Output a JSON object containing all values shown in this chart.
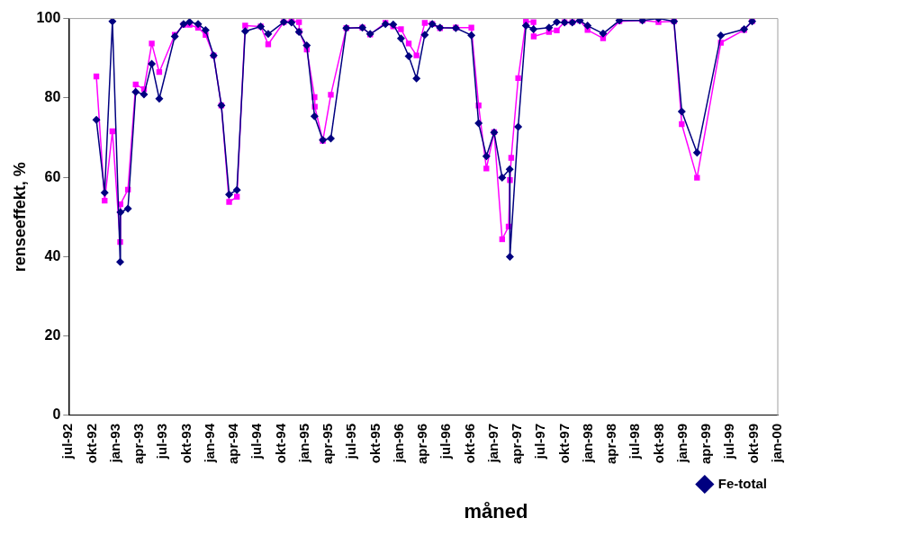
{
  "chart_data": {
    "type": "line",
    "xlabel": "måned",
    "ylabel": "renseeffekt, %",
    "xlim": [
      "1992-07-01",
      "2000-01-01"
    ],
    "xticks": [
      {
        "value": "1992-07-01",
        "label": "jul-92"
      },
      {
        "value": "1992-10-01",
        "label": "okt-92"
      },
      {
        "value": "1993-01-01",
        "label": "jan-93"
      },
      {
        "value": "1993-04-01",
        "label": "apr-93"
      },
      {
        "value": "1993-07-01",
        "label": "jul-93"
      },
      {
        "value": "1993-10-01",
        "label": "okt-93"
      },
      {
        "value": "1994-01-01",
        "label": "jan-94"
      },
      {
        "value": "1994-04-01",
        "label": "apr-94"
      },
      {
        "value": "1994-07-01",
        "label": "jul-94"
      },
      {
        "value": "1994-10-01",
        "label": "okt-94"
      },
      {
        "value": "1995-01-01",
        "label": "jan-95"
      },
      {
        "value": "1995-04-01",
        "label": "apr-95"
      },
      {
        "value": "1995-07-01",
        "label": "jul-95"
      },
      {
        "value": "1995-10-01",
        "label": "okt-95"
      },
      {
        "value": "1996-01-01",
        "label": "jan-96"
      },
      {
        "value": "1996-04-01",
        "label": "apr-96"
      },
      {
        "value": "1996-07-01",
        "label": "jul-96"
      },
      {
        "value": "1996-10-01",
        "label": "okt-96"
      },
      {
        "value": "1997-01-01",
        "label": "jan-97"
      },
      {
        "value": "1997-04-01",
        "label": "apr-97"
      },
      {
        "value": "1997-07-01",
        "label": "jul-97"
      },
      {
        "value": "1997-10-01",
        "label": "okt-97"
      },
      {
        "value": "1998-01-01",
        "label": "jan-98"
      },
      {
        "value": "1998-04-01",
        "label": "apr-98"
      },
      {
        "value": "1998-07-01",
        "label": "jul-98"
      },
      {
        "value": "1998-10-01",
        "label": "okt-98"
      },
      {
        "value": "1999-01-01",
        "label": "jan-99"
      },
      {
        "value": "1999-04-01",
        "label": "apr-99"
      },
      {
        "value": "1999-07-01",
        "label": "jul-99"
      },
      {
        "value": "1999-10-01",
        "label": "okt-99"
      },
      {
        "value": "2000-01-01",
        "label": "jan-00"
      }
    ],
    "ylim": [
      0,
      100
    ],
    "yticks": [
      0,
      20,
      40,
      60,
      80,
      100
    ],
    "grid": false,
    "legend": "bottom right",
    "series": [
      {
        "name": "Fe-total",
        "color": "#000080",
        "marker": "diamond",
        "x": [
          "1992-10-16",
          "1992-11-17",
          "1992-12-17",
          "1993-01-16",
          "1993-01-17",
          "1993-02-15",
          "1993-03-17",
          "1993-04-18",
          "1993-05-18",
          "1993-06-16",
          "1993-08-15",
          "1993-09-18",
          "1993-10-11",
          "1993-11-13",
          "1993-12-12",
          "1994-01-12",
          "1994-02-11",
          "1994-03-13",
          "1994-04-12",
          "1994-05-14",
          "1994-07-13",
          "1994-08-11",
          "1994-10-10",
          "1994-11-09",
          "1994-12-08",
          "1995-01-07",
          "1995-02-06",
          "1995-03-10",
          "1995-04-10",
          "1995-06-09",
          "1995-08-10",
          "1995-09-09",
          "1995-11-07",
          "1995-12-07",
          "1996-01-06",
          "1996-02-05",
          "1996-03-06",
          "1996-04-07",
          "1996-05-06",
          "1996-06-05",
          "1996-08-05",
          "1996-10-04",
          "1996-11-01",
          "1996-12-01",
          "1996-12-31",
          "1997-01-31",
          "1997-03-01",
          "1997-03-02",
          "1997-04-03",
          "1997-05-03",
          "1997-06-01",
          "1997-07-31",
          "1997-08-30",
          "1997-09-29",
          "1997-10-29",
          "1997-11-27",
          "1997-12-27",
          "1998-02-25",
          "1998-04-29",
          "1998-07-27",
          "1998-09-27",
          "1998-11-26",
          "1998-12-26",
          "1999-02-23",
          "1999-05-26",
          "1999-08-24",
          "1999-09-24"
        ],
        "values": [
          74.5,
          56.1,
          99.3,
          38.7,
          51.2,
          52.1,
          81.5,
          80.9,
          88.6,
          79.8,
          95.5,
          98.6,
          99.1,
          98.6,
          97.1,
          90.7,
          78.1,
          55.7,
          56.8,
          96.8,
          98.0,
          96.1,
          99.1,
          99.0,
          96.6,
          93.2,
          75.4,
          69.4,
          69.8,
          97.6,
          97.7,
          96.1,
          98.6,
          98.5,
          95.0,
          90.5,
          84.9,
          95.9,
          98.6,
          97.7,
          97.6,
          95.8,
          73.6,
          65.3,
          71.3,
          59.9,
          62.0,
          40.0,
          72.7,
          98.2,
          97.3,
          97.7,
          99.1,
          99.0,
          99.0,
          99.5,
          98.2,
          96.2,
          99.5,
          99.5,
          100,
          99.3,
          76.6,
          66.2,
          95.7,
          97.3,
          99.3
        ]
      },
      {
        "color": "#ff00ff",
        "marker": "square",
        "x": [
          "1992-10-16",
          "1992-11-17",
          "1992-12-17",
          "1993-01-16",
          "1993-01-17",
          "1993-02-15",
          "1993-03-17",
          "1993-04-18",
          "1993-05-18",
          "1993-06-16",
          "1993-08-15",
          "1993-09-18",
          "1993-10-11",
          "1993-11-13",
          "1993-12-12",
          "1994-01-12",
          "1994-02-11",
          "1994-03-13",
          "1994-04-12",
          "1994-05-14",
          "1994-07-13",
          "1994-08-11",
          "1994-10-10",
          "1994-11-09",
          "1994-12-08",
          "1994-12-09",
          "1995-01-07",
          "1995-02-06",
          "1995-02-07",
          "1995-03-10",
          "1995-04-10",
          "1995-06-09",
          "1995-08-10",
          "1995-09-09",
          "1995-11-07",
          "1995-12-07",
          "1996-01-06",
          "1996-02-05",
          "1996-03-06",
          "1996-04-07",
          "1996-05-06",
          "1996-06-05",
          "1996-08-05",
          "1996-10-04",
          "1996-11-01",
          "1996-12-01",
          "1996-12-31",
          "1997-01-31",
          "1997-02-25",
          "1997-03-02",
          "1997-03-07",
          "1997-04-03",
          "1997-05-03",
          "1997-06-01",
          "1997-06-02",
          "1997-07-31",
          "1997-08-30",
          "1997-09-29",
          "1997-10-29",
          "1997-11-27",
          "1997-12-27",
          "1998-02-25",
          "1998-04-29",
          "1998-07-27",
          "1998-09-27",
          "1998-11-26",
          "1998-12-26",
          "1999-02-23",
          "1999-05-26",
          "1999-08-24",
          "1999-09-24"
        ],
        "values": [
          85.4,
          54.1,
          71.6,
          43.7,
          53.2,
          56.9,
          83.4,
          82.2,
          93.7,
          86.5,
          95.9,
          98.4,
          98.4,
          97.7,
          95.9,
          90.7,
          78.1,
          53.8,
          55.1,
          98.2,
          98.0,
          93.5,
          99.1,
          99.5,
          99.1,
          96.8,
          92.2,
          80.2,
          77.8,
          69.2,
          80.8,
          97.6,
          97.7,
          96.0,
          98.9,
          98.0,
          97.3,
          93.7,
          90.7,
          98.9,
          98.6,
          97.6,
          97.7,
          97.7,
          78.1,
          62.2,
          71.4,
          44.4,
          47.6,
          59.3,
          64.9,
          85.0,
          99.3,
          99.1,
          95.5,
          96.6,
          97.0,
          99.1,
          99.1,
          99.5,
          97.1,
          95.0,
          99.3,
          99.5,
          99.1,
          99.3,
          73.4,
          59.9,
          93.9,
          97.1,
          99.3
        ]
      }
    ]
  }
}
